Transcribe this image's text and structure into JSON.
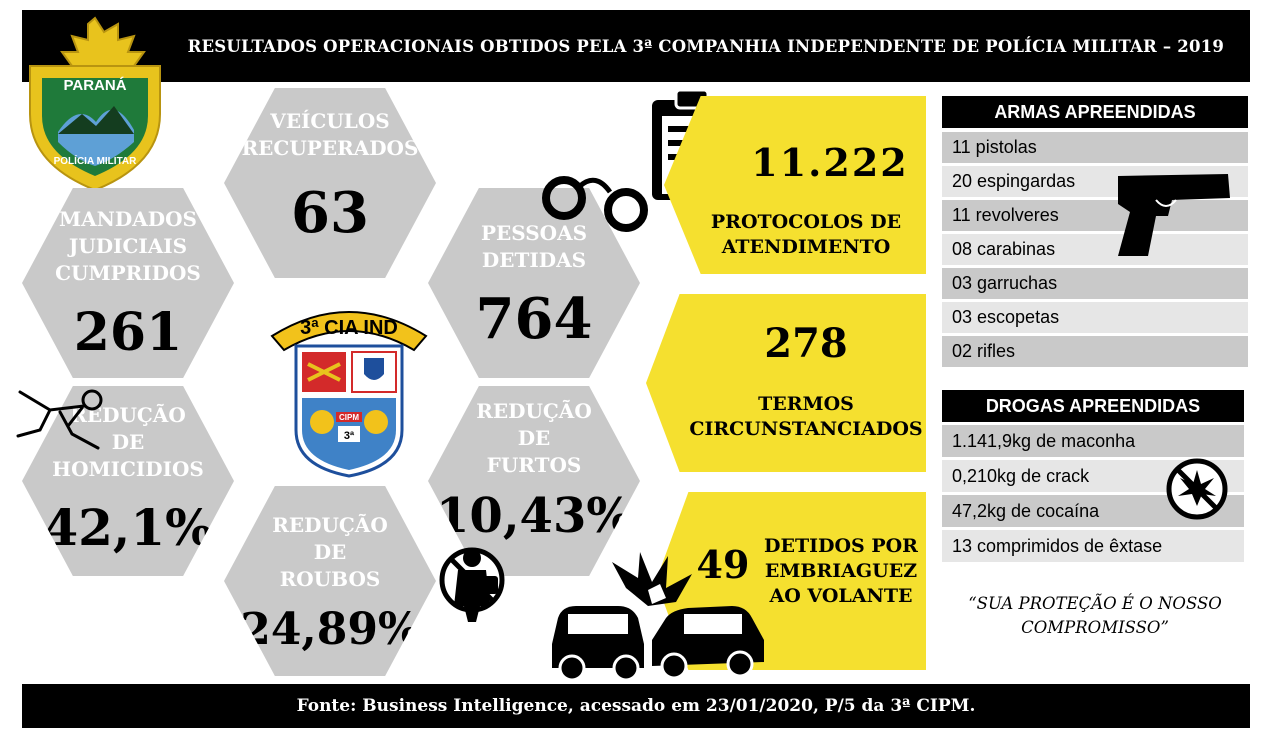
{
  "header": {
    "title": "RESULTADOS OPERACIONAIS OBTIDOS PELA 3ª COMPANHIA INDEPENDENTE DE POLÍCIA MILITAR – 2019"
  },
  "footer": {
    "source": "Fonte: Business Intelligence, acessado em 23/01/2020, P/5 da 3ª CIPM."
  },
  "badge": {
    "top": "PARANÁ",
    "bottom": "POLÍCIA MILITAR"
  },
  "unit_emblem": {
    "label": "3ª CIA IND",
    "shield_text": "CIPM",
    "shield_num": "3ª"
  },
  "stats": {
    "veiculos": {
      "label_1": "VEÍCULOS",
      "label_2": "RECUPERADOS",
      "value": "63"
    },
    "mandados": {
      "label_1": "MANDADOS",
      "label_2": "JUDICIAIS",
      "label_3": "CUMPRIDOS",
      "value": "261"
    },
    "pessoas": {
      "label_1": "PESSOAS",
      "label_2": "DETIDAS",
      "value": "764"
    },
    "homicidios": {
      "label_1": "REDUÇÃO",
      "label_2": "DE",
      "label_3": "HOMICIDIOS",
      "value": "42,1%"
    },
    "furtos": {
      "label_1": "REDUÇÃO",
      "label_2": "DE",
      "label_3": "FURTOS",
      "value": "10,43%"
    },
    "roubos": {
      "label_1": "REDUÇÃO",
      "label_2": "DE",
      "label_3": "ROUBOS",
      "value": "24,89%"
    }
  },
  "highlights": {
    "protocolos": {
      "value": "11.222",
      "label_1": "PROTOCOLOS DE",
      "label_2": "ATENDIMENTO"
    },
    "termos": {
      "value": "278",
      "label_1": "TERMOS",
      "label_2": "CIRCUNSTANCIADOS"
    },
    "embriaguez": {
      "value": "49",
      "label_1": "DETIDOS POR",
      "label_2": "EMBRIAGUEZ",
      "label_3": "AO VOLANTE"
    }
  },
  "armas": {
    "title": "ARMAS APREENDIDAS",
    "items": [
      "11 pistolas",
      "20 espingardas",
      "11 revolveres",
      "08 carabinas",
      "03 garruchas",
      "03 escopetas",
      "02 rifles"
    ]
  },
  "drogas": {
    "title": "DROGAS APREENDIDAS",
    "items": [
      "1.141,9kg de maconha",
      "0,210kg de crack",
      "47,2kg de cocaína",
      "13 comprimidos de êxtase"
    ]
  },
  "slogan": {
    "line_1": "“SUA PROTEÇÃO É O NOSSO",
    "line_2": "COMPROMISSO”"
  },
  "colors": {
    "yellow": "#f5e02f",
    "hex_gray": "#c9c9c9",
    "badge_green": "#1f7a3a",
    "badge_gold": "#e8c31d"
  }
}
